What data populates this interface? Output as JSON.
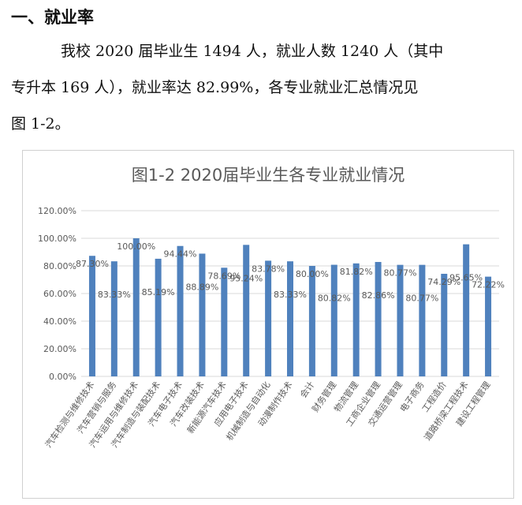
{
  "heading": "一、就业率",
  "paragraph": {
    "line1": "我校 2020 届毕业生 1494 人，就业人数 1240 人（其中",
    "line2": "专升本 169 人），就业率达 82.99%，各专业就业汇总情况见",
    "line3": "图 1-2。"
  },
  "colors": {
    "bar": "#4f81bd",
    "grid": "#d9d9d9",
    "text": "#595959"
  },
  "chart_data": {
    "type": "bar",
    "title": "图1-2  2020届毕业生各专业就业情况",
    "ylim": [
      0,
      120
    ],
    "yticks": [
      "0.00%",
      "20.00%",
      "40.00%",
      "60.00%",
      "80.00%",
      "100.00%",
      "120.00%"
    ],
    "grid": true,
    "categories": [
      "汽车检测与维修技术",
      "汽车营销与服务",
      "汽车运用与维修技术",
      "汽车制造与装配技术",
      "汽车电子技术",
      "汽车改装技术",
      "新能源汽车技术",
      "应用电子技术",
      "机械制造与自动化",
      "动漫制作技术",
      "会计",
      "财务管理",
      "物流管理",
      "工商企业管理",
      "交通运营管理",
      "电子商务",
      "工程造价",
      "道路桥梁工程技术",
      "建设工程管理"
    ],
    "values": [
      87.3,
      83.33,
      100.0,
      85.19,
      94.44,
      88.89,
      78.69,
      95.24,
      83.78,
      83.33,
      80.0,
      80.82,
      81.82,
      82.86,
      80.77,
      80.77,
      74.29,
      95.65,
      72.22
    ],
    "labels": [
      "87.30%",
      "83.33%",
      "100.00%",
      "85.19%",
      "94.44%",
      "88.89%",
      "78.69%",
      "95.24%",
      "83.78%",
      "83.33%",
      "80.00%",
      "80.82%",
      "81.82%",
      "82.86%",
      "80.77%",
      "80.77%",
      "74.29%",
      "95.65%",
      "72.22%"
    ]
  }
}
